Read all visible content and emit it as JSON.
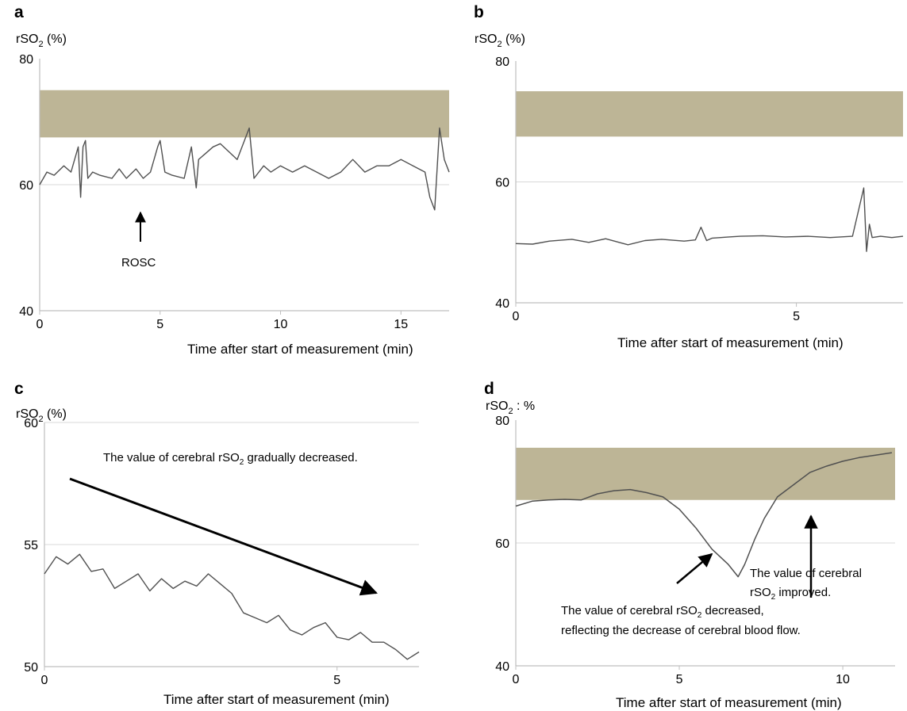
{
  "colors": {
    "band": "#bdb596",
    "trace": "#505050",
    "axis": "#bfbfbf",
    "grid": "#d9d9d9",
    "arrow": "#000000"
  },
  "chart_data": [
    {
      "panel": "a",
      "type": "line",
      "ylabel_main": "rSO",
      "ylabel_sub": "2",
      "ylabel_tail": " (%)",
      "xlabel": "Time after start of measurement (min)",
      "xlim": [
        0,
        17
      ],
      "ylim": [
        40,
        80
      ],
      "xticks": [
        0,
        5,
        10,
        15
      ],
      "yticks": [
        40,
        60,
        80
      ],
      "gridlines": [
        60
      ],
      "band": [
        67.5,
        75
      ],
      "series": [
        {
          "x": [
            0,
            0.3,
            0.6,
            1,
            1.3,
            1.6,
            1.7,
            1.8,
            1.9,
            2.0,
            2.2,
            2.5,
            3,
            3.3,
            3.6,
            4,
            4.3,
            4.6,
            4.9,
            5.0,
            5.2,
            5.5,
            6,
            6.3,
            6.5,
            6.6,
            6.9,
            7.2,
            7.5,
            8.2,
            8.7,
            8.9,
            9.3,
            9.6,
            10,
            10.5,
            11,
            11.5,
            12,
            12.5,
            13,
            13.5,
            14,
            14.5,
            15,
            15.5,
            16,
            16.2,
            16.4,
            16.6,
            16.8,
            17
          ],
          "y": [
            60,
            62,
            61.5,
            63,
            62,
            66,
            58,
            66,
            67,
            61,
            62,
            61.5,
            61,
            62.5,
            61,
            62.5,
            61,
            62,
            66,
            67,
            62,
            61.5,
            61,
            66,
            59.5,
            64,
            65,
            66,
            66.5,
            64,
            69,
            61,
            63,
            62,
            63,
            62,
            63,
            62,
            61,
            62,
            64,
            62,
            63,
            63,
            64,
            63,
            62,
            58,
            56,
            69,
            64,
            62
          ]
        }
      ],
      "annotations": [
        {
          "text": "ROSC",
          "x": 4.3,
          "y": 51
        }
      ]
    },
    {
      "panel": "b",
      "type": "line",
      "ylabel_main": "rSO",
      "ylabel_sub": "2",
      "ylabel_tail": " (%)",
      "xlabel": "Time after start of measurement (min)",
      "xlim": [
        0,
        6.9
      ],
      "ylim": [
        40,
        80
      ],
      "xticks": [
        0,
        5
      ],
      "yticks": [
        40,
        60,
        80
      ],
      "gridlines": [
        60
      ],
      "band": [
        67.5,
        75
      ],
      "series": [
        {
          "x": [
            0,
            0.3,
            0.6,
            1,
            1.3,
            1.6,
            2,
            2.3,
            2.6,
            3,
            3.2,
            3.3,
            3.4,
            3.5,
            3.8,
            4,
            4.4,
            4.8,
            5.2,
            5.6,
            6,
            6.2,
            6.25,
            6.3,
            6.35,
            6.5,
            6.7,
            6.9
          ],
          "y": [
            49.8,
            49.7,
            50.2,
            50.5,
            50,
            50.6,
            49.6,
            50.3,
            50.5,
            50.2,
            50.4,
            52.5,
            50.3,
            50.7,
            50.9,
            51,
            51.1,
            50.9,
            51,
            50.8,
            51,
            59,
            48.5,
            53,
            50.8,
            51,
            50.8,
            51
          ]
        }
      ]
    },
    {
      "panel": "c",
      "type": "line",
      "ylabel_main": "rSO",
      "ylabel_sub": "2",
      "ylabel_tail": " (%)",
      "xlabel": "Time after start of measurement (min)",
      "xlim": [
        0,
        6.4
      ],
      "ylim": [
        50,
        60
      ],
      "xticks": [
        0,
        5
      ],
      "yticks": [
        50,
        55,
        60
      ],
      "gridlines": [
        55,
        60
      ],
      "series": [
        {
          "x": [
            0,
            0.2,
            0.4,
            0.6,
            0.8,
            1,
            1.2,
            1.4,
            1.6,
            1.8,
            2,
            2.2,
            2.4,
            2.6,
            2.8,
            3,
            3.2,
            3.4,
            3.6,
            3.8,
            4,
            4.2,
            4.4,
            4.6,
            4.8,
            5,
            5.2,
            5.4,
            5.6,
            5.8,
            6,
            6.2,
            6.4
          ],
          "y": [
            53.8,
            54.5,
            54.2,
            54.6,
            53.9,
            54,
            53.2,
            53.5,
            53.8,
            53.1,
            53.6,
            53.2,
            53.5,
            53.3,
            53.8,
            53.4,
            53,
            52.2,
            52,
            51.8,
            52.1,
            51.5,
            51.3,
            51.6,
            51.8,
            51.2,
            51.1,
            51.4,
            51.0,
            51.0,
            50.7,
            50.3,
            50.6
          ]
        }
      ],
      "annotations": [
        {
          "text_pre": "The value of cerebral rSO",
          "text_sub": "2",
          "text_post": " gradually decreased."
        }
      ]
    },
    {
      "panel": "d",
      "type": "line",
      "ylabel_main": "rSO",
      "ylabel_sub": "2",
      "ylabel_tail": " : %",
      "xlabel": "Time after start of measurement (min)",
      "xlim": [
        0,
        11.6
      ],
      "ylim": [
        40,
        80
      ],
      "xticks": [
        0,
        5,
        10
      ],
      "yticks": [
        40,
        60,
        80
      ],
      "gridlines": [
        60
      ],
      "band": [
        67,
        75.5
      ],
      "series": [
        {
          "x": [
            0,
            0.5,
            1,
            1.5,
            2,
            2.5,
            3,
            3.5,
            4,
            4.5,
            5,
            5.5,
            6,
            6.5,
            6.8,
            7,
            7.3,
            7.6,
            8,
            8.5,
            9,
            9.5,
            10,
            10.5,
            11,
            11.5
          ],
          "y": [
            66,
            66.8,
            67,
            67.1,
            67,
            68,
            68.5,
            68.7,
            68.2,
            67.5,
            65.5,
            62.5,
            59,
            56.5,
            54.5,
            56.5,
            60.5,
            64,
            67.5,
            69.5,
            71.5,
            72.5,
            73.3,
            73.9,
            74.3,
            74.7
          ]
        }
      ],
      "annotations": [
        {
          "line1_pre": "The value of cerebral",
          "line2_pre": "rSO",
          "line2_sub": "2",
          "line2_post": " improved."
        },
        {
          "line1_pre": "The value of cerebral rSO",
          "line1_sub": "2",
          "line1_post": " decreased,",
          "line2": "reflecting the decrease of cerebral blood flow."
        }
      ]
    }
  ]
}
